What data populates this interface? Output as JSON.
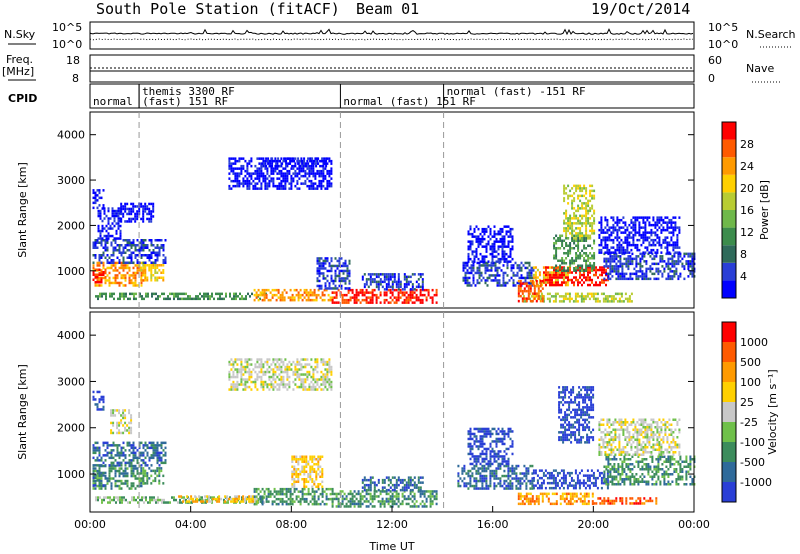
{
  "header": {
    "station": "South Pole Station (fitACF)",
    "beam": "Beam 01",
    "date": "19/Oct/2014"
  },
  "top_panels": {
    "nsky_label": "N.Sky",
    "nsearch_label": "N.Search",
    "noise_ticks": [
      "10^5",
      "10^0"
    ],
    "freq_label": "Freq.",
    "freq_unit": "[MHz]",
    "freq_ticks": [
      "18",
      "8"
    ],
    "nave_label": "Nave",
    "nave_ticks": [
      "60",
      "0"
    ],
    "cpid_label": "CPID",
    "cpid_segments": [
      {
        "start_hr": 0.0,
        "end_hr": 1.95,
        "text": "normal",
        "row": 2
      },
      {
        "start_hr": 1.95,
        "end_hr": 9.95,
        "text": "themis 3300 RF",
        "row": 1
      },
      {
        "start_hr": 1.95,
        "end_hr": 9.95,
        "text": "(fast) 151 RF",
        "row": 2
      },
      {
        "start_hr": 9.95,
        "end_hr": 14.05,
        "text": "normal (fast)  151 RF",
        "row": 2
      },
      {
        "start_hr": 14.05,
        "end_hr": 24.0,
        "text": "normal (fast) -151 RF",
        "row": 1
      }
    ]
  },
  "chart_data": [
    {
      "type": "heatmap",
      "name": "power",
      "ylabel": "Slant Range [km]",
      "xlabel": "",
      "xlim_hours": [
        0,
        24
      ],
      "ylim": [
        180,
        4500
      ],
      "yticks": [
        "1000",
        "2000",
        "3000",
        "4000"
      ],
      "colorbar_label": "Power [dB]",
      "colorbar_ticks": [
        "28",
        "24",
        "20",
        "16",
        "12",
        "8",
        "4"
      ],
      "colorbar_colors": [
        "#0000ff",
        "#2a3fd6",
        "#2f6a5a",
        "#3c8c4c",
        "#6fb84a",
        "#b8cc33",
        "#ffd000",
        "#ff9a00",
        "#ff5a00",
        "#ff0000"
      ],
      "regions": [
        {
          "x": [
            0.1,
            2.1
          ],
          "y": [
            700,
            1200
          ],
          "level": 7
        },
        {
          "x": [
            0.1,
            0.6
          ],
          "y": [
            750,
            1050
          ],
          "level": 9
        },
        {
          "x": [
            2.0,
            2.9
          ],
          "y": [
            800,
            1150
          ],
          "level": 6
        },
        {
          "x": [
            0.1,
            3.0
          ],
          "y": [
            1200,
            1700
          ],
          "level": 1
        },
        {
          "x": [
            0.3,
            1.2
          ],
          "y": [
            1700,
            2400
          ],
          "level": 0
        },
        {
          "x": [
            1.2,
            2.5
          ],
          "y": [
            2100,
            2500
          ],
          "level": 0
        },
        {
          "x": [
            0.1,
            0.5
          ],
          "y": [
            2400,
            2800
          ],
          "level": 0
        },
        {
          "x": [
            0.2,
            7.0
          ],
          "y": [
            360,
            520
          ],
          "level": 3
        },
        {
          "x": [
            5.5,
            9.6
          ],
          "y": [
            2800,
            3500
          ],
          "level": 0
        },
        {
          "x": [
            6.8,
            9.4
          ],
          "y": [
            3300,
            3500
          ],
          "level": 0
        },
        {
          "x": [
            6.5,
            9.6
          ],
          "y": [
            350,
            600
          ],
          "level": 7
        },
        {
          "x": [
            9.6,
            13.8
          ],
          "y": [
            300,
            600
          ],
          "level": 9
        },
        {
          "x": [
            10.8,
            13.2
          ],
          "y": [
            600,
            950
          ],
          "level": 1
        },
        {
          "x": [
            9.0,
            10.3
          ],
          "y": [
            600,
            1300
          ],
          "level": 1
        },
        {
          "x": [
            14.8,
            17.6
          ],
          "y": [
            700,
            1200
          ],
          "level": 1
        },
        {
          "x": [
            15.0,
            16.8
          ],
          "y": [
            1200,
            2000
          ],
          "level": 0
        },
        {
          "x": [
            17.6,
            19.0
          ],
          "y": [
            700,
            1100
          ],
          "level": 6
        },
        {
          "x": [
            18.0,
            20.6
          ],
          "y": [
            700,
            1100
          ],
          "level": 9
        },
        {
          "x": [
            18.4,
            20.0
          ],
          "y": [
            1000,
            1800
          ],
          "level": 3
        },
        {
          "x": [
            18.8,
            20.0
          ],
          "y": [
            1700,
            2900
          ],
          "level": 5
        },
        {
          "x": [
            20.4,
            24.0
          ],
          "y": [
            800,
            1400
          ],
          "level": 1
        },
        {
          "x": [
            20.2,
            23.4
          ],
          "y": [
            1400,
            2200
          ],
          "level": 0
        },
        {
          "x": [
            17.2,
            21.5
          ],
          "y": [
            350,
            520
          ],
          "level": 5
        },
        {
          "x": [
            17.0,
            18.0
          ],
          "y": [
            350,
            800
          ],
          "level": 8
        }
      ]
    },
    {
      "type": "heatmap",
      "name": "velocity",
      "ylabel": "Slant Range [km]",
      "xlabel": "Time UT",
      "xlim_hours": [
        0,
        24
      ],
      "ylim": [
        180,
        4500
      ],
      "yticks": [
        "1000",
        "2000",
        "3000",
        "4000"
      ],
      "xticks": [
        "00:00",
        "04:00",
        "08:00",
        "12:00",
        "16:00",
        "20:00",
        "00:00"
      ],
      "colorbar_label": "Velocity [m s⁻¹]",
      "colorbar_ticks": [
        "1000",
        "500",
        "100",
        "25",
        "-25",
        "-100",
        "-500",
        "-1000"
      ],
      "colorbar_colors": [
        "#2a3fd6",
        "#2f6a9a",
        "#3c8c5c",
        "#6fc04a",
        "#c8c8c8",
        "#ffd000",
        "#ff9a00",
        "#ff5a00",
        "#ff0000"
      ],
      "regions": [
        {
          "x": [
            0.1,
            2.1
          ],
          "y": [
            700,
            1200
          ],
          "level": 2
        },
        {
          "x": [
            0.1,
            0.6
          ],
          "y": [
            750,
            1050
          ],
          "level": 1
        },
        {
          "x": [
            2.0,
            2.9
          ],
          "y": [
            800,
            1150
          ],
          "level": 2
        },
        {
          "x": [
            0.1,
            3.0
          ],
          "y": [
            1200,
            1700
          ],
          "level": 1
        },
        {
          "x": [
            0.8,
            1.6
          ],
          "y": [
            1900,
            2400
          ],
          "level": 4
        },
        {
          "x": [
            0.1,
            0.5
          ],
          "y": [
            2400,
            2800
          ],
          "level": 0
        },
        {
          "x": [
            0.2,
            7.0
          ],
          "y": [
            360,
            520
          ],
          "level": 3
        },
        {
          "x": [
            3.5,
            6.6
          ],
          "y": [
            380,
            540
          ],
          "level": 5
        },
        {
          "x": [
            5.5,
            9.6
          ],
          "y": [
            2800,
            3500
          ],
          "level": 4
        },
        {
          "x": [
            6.5,
            9.6
          ],
          "y": [
            350,
            700
          ],
          "level": 2
        },
        {
          "x": [
            8.0,
            9.2
          ],
          "y": [
            700,
            1400
          ],
          "level": 5
        },
        {
          "x": [
            9.6,
            13.8
          ],
          "y": [
            300,
            650
          ],
          "level": 2
        },
        {
          "x": [
            10.8,
            13.2
          ],
          "y": [
            650,
            950
          ],
          "level": 1
        },
        {
          "x": [
            14.6,
            17.6
          ],
          "y": [
            700,
            1200
          ],
          "level": 1
        },
        {
          "x": [
            15.0,
            16.8
          ],
          "y": [
            1200,
            2000
          ],
          "level": 0
        },
        {
          "x": [
            17.6,
            20.6
          ],
          "y": [
            700,
            1100
          ],
          "level": 0
        },
        {
          "x": [
            18.6,
            20.0
          ],
          "y": [
            1700,
            2900
          ],
          "level": 0
        },
        {
          "x": [
            20.4,
            24.0
          ],
          "y": [
            800,
            1400
          ],
          "level": 2
        },
        {
          "x": [
            20.2,
            23.4
          ],
          "y": [
            1400,
            2200
          ],
          "level": 4
        },
        {
          "x": [
            17.0,
            20.0
          ],
          "y": [
            350,
            600
          ],
          "level": 6
        },
        {
          "x": [
            20.0,
            22.5
          ],
          "y": [
            350,
            500
          ],
          "level": 7
        }
      ]
    }
  ]
}
